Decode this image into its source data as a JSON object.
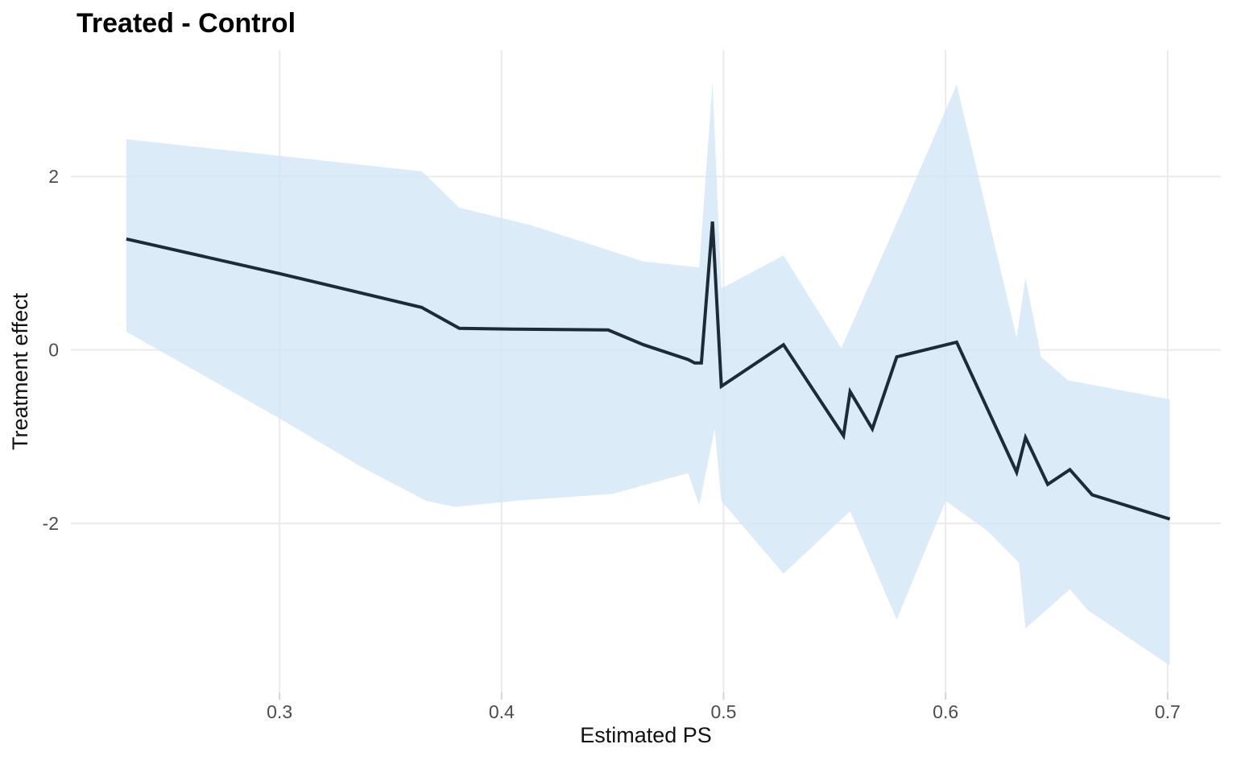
{
  "chart_data": {
    "type": "line",
    "title": "Treated - Control",
    "xlabel": "Estimated PS",
    "ylabel": "Treatment effect",
    "x_ticks": [
      0.3,
      0.4,
      0.5,
      0.6,
      0.7
    ],
    "x_tick_labels": [
      "0.3",
      "0.4",
      "0.5",
      "0.6",
      "0.7"
    ],
    "y_ticks": [
      -2,
      0,
      2
    ],
    "y_tick_labels": [
      "-2",
      "0",
      "2"
    ],
    "xlim": [
      0.206,
      0.724
    ],
    "ylim": [
      -3.95,
      3.46
    ],
    "grid": true,
    "legend": false,
    "colors": {
      "line": "#1c2b36",
      "band": "#d3e6f6",
      "grid": "#ebebeb",
      "tick_mark": "#d4d4d4",
      "tick_text": "#4d4d4d",
      "background": "#ffffff"
    },
    "band": {
      "fill": "#d3e6f6",
      "opacity": 0.8
    },
    "series": [
      {
        "name": "treatment_effect",
        "role": "line",
        "color": "#1c2b36",
        "points": [
          [
            0.231,
            1.28
          ],
          [
            0.3,
            0.88
          ],
          [
            0.364,
            0.49
          ],
          [
            0.381,
            0.25
          ],
          [
            0.406,
            0.24
          ],
          [
            0.448,
            0.23
          ],
          [
            0.464,
            0.06
          ],
          [
            0.484,
            -0.11
          ],
          [
            0.487,
            -0.15
          ],
          [
            0.49,
            -0.15
          ],
          [
            0.495,
            1.48
          ],
          [
            0.499,
            -0.42
          ],
          [
            0.527,
            0.06
          ],
          [
            0.554,
            -0.99
          ],
          [
            0.557,
            -0.48
          ],
          [
            0.567,
            -0.91
          ],
          [
            0.578,
            -0.08
          ],
          [
            0.605,
            0.09
          ],
          [
            0.632,
            -1.41
          ],
          [
            0.636,
            -1.01
          ],
          [
            0.646,
            -1.55
          ],
          [
            0.656,
            -1.38
          ],
          [
            0.666,
            -1.67
          ],
          [
            0.701,
            -1.95
          ]
        ]
      },
      {
        "name": "ci_upper",
        "role": "band-upper",
        "points": [
          [
            0.231,
            2.43
          ],
          [
            0.364,
            2.06
          ],
          [
            0.381,
            1.64
          ],
          [
            0.413,
            1.44
          ],
          [
            0.464,
            1.02
          ],
          [
            0.489,
            0.95
          ],
          [
            0.495,
            3.08
          ],
          [
            0.499,
            0.71
          ],
          [
            0.527,
            1.09
          ],
          [
            0.553,
            0.02
          ],
          [
            0.58,
            1.58
          ],
          [
            0.605,
            3.06
          ],
          [
            0.632,
            0.14
          ],
          [
            0.636,
            0.83
          ],
          [
            0.643,
            -0.08
          ],
          [
            0.655,
            -0.35
          ],
          [
            0.701,
            -0.57
          ]
        ]
      },
      {
        "name": "ci_lower",
        "role": "band-lower",
        "points": [
          [
            0.231,
            0.21
          ],
          [
            0.3,
            -0.79
          ],
          [
            0.337,
            -1.35
          ],
          [
            0.366,
            -1.74
          ],
          [
            0.379,
            -1.81
          ],
          [
            0.406,
            -1.74
          ],
          [
            0.45,
            -1.66
          ],
          [
            0.484,
            -1.42
          ],
          [
            0.489,
            -1.79
          ],
          [
            0.496,
            -0.91
          ],
          [
            0.499,
            -1.74
          ],
          [
            0.527,
            -2.58
          ],
          [
            0.557,
            -1.86
          ],
          [
            0.578,
            -3.11
          ],
          [
            0.6,
            -1.74
          ],
          [
            0.619,
            -2.09
          ],
          [
            0.633,
            -2.45
          ],
          [
            0.636,
            -3.21
          ],
          [
            0.656,
            -2.76
          ],
          [
            0.664,
            -3.0
          ],
          [
            0.701,
            -3.64
          ]
        ]
      }
    ]
  }
}
